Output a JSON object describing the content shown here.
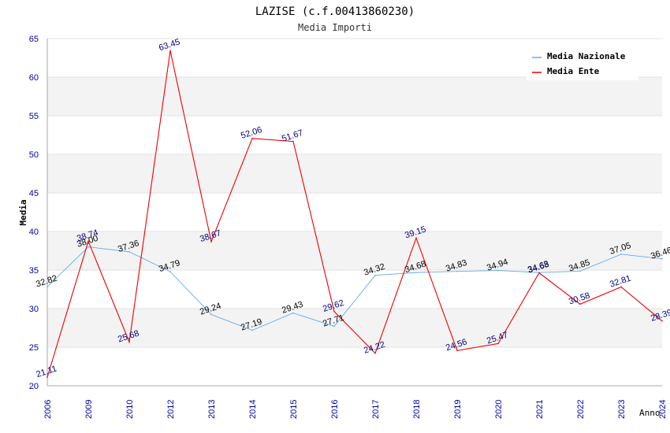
{
  "chart_data": {
    "type": "line",
    "title": "LAZISE (c.f.00413860230)",
    "subtitle": "Media Importi",
    "xlabel": "Anno",
    "ylabel": "Media",
    "ylim": [
      20,
      65
    ],
    "yticks": [
      20,
      25,
      30,
      35,
      40,
      45,
      50,
      55,
      60,
      65
    ],
    "categories": [
      "2006",
      "2009",
      "2010",
      "2012",
      "2013",
      "2014",
      "2015",
      "2016",
      "2017",
      "2018",
      "2019",
      "2020",
      "2021",
      "2022",
      "2023",
      "2024"
    ],
    "series": [
      {
        "name": "Media Nazionale",
        "color": "#66aaee",
        "label_color": "#000000",
        "values": [
          32.82,
          38.0,
          37.36,
          34.79,
          29.24,
          27.19,
          29.43,
          27.71,
          34.32,
          34.68,
          34.83,
          34.94,
          34.68,
          34.85,
          37.05,
          36.46
        ],
        "labels": [
          "32.82",
          "38.00",
          "37.36",
          "34.79",
          "29.24",
          "27.19",
          "29.43",
          "27.71",
          "34.32",
          "34.68",
          "34.83",
          "34.94",
          "34.68",
          "34.85",
          "37.05",
          "36.46"
        ]
      },
      {
        "name": "Media Ente",
        "color": "#ee0000",
        "label_color": "#000080",
        "values": [
          21.11,
          38.74,
          25.68,
          63.45,
          38.67,
          52.06,
          51.67,
          29.62,
          24.22,
          39.15,
          24.56,
          25.47,
          34.63,
          30.58,
          32.81,
          28.39
        ],
        "labels": [
          "21.11",
          "38.74",
          "25.68",
          "63.45",
          "38.67",
          "52.06",
          "51.67",
          "29.62",
          "24.22",
          "39.15",
          "24.56",
          "25.47",
          "34.63",
          "30.58",
          "32.81",
          "28.39"
        ]
      }
    ],
    "grid": true,
    "legend_position": "top-right"
  }
}
